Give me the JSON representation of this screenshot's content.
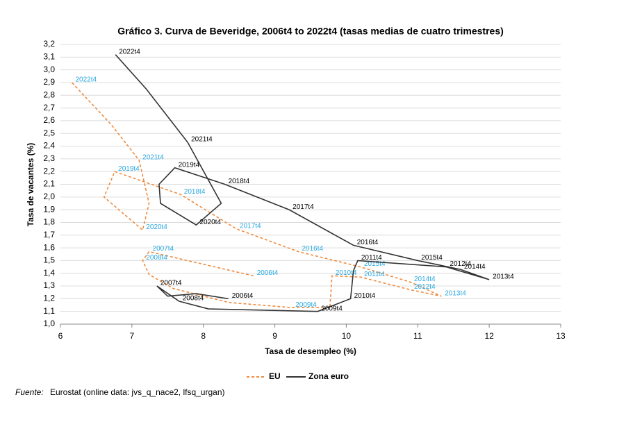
{
  "chart_data": {
    "type": "line",
    "title": "Gráfico 3. Curva de Beveridge, 2006t4 to 2022t4 (tasas medias de cuatro trimestres)",
    "x_label": "Tasa de desempleo (%)",
    "y_label": "Tasa de vacantes (%)",
    "xlim": [
      6,
      13
    ],
    "xticks": [
      6,
      7,
      8,
      9,
      10,
      11,
      12,
      13
    ],
    "ylim": [
      1.0,
      3.2
    ],
    "yticks": [
      {
        "value": 1.0,
        "label": "1,0"
      },
      {
        "value": 1.1,
        "label": "1,1"
      },
      {
        "value": 1.2,
        "label": "1,2"
      },
      {
        "value": 1.3,
        "label": "1,3"
      },
      {
        "value": 1.4,
        "label": "1,4"
      },
      {
        "value": 1.5,
        "label": "1,5"
      },
      {
        "value": 1.6,
        "label": "1,6"
      },
      {
        "value": 1.7,
        "label": "1,7"
      },
      {
        "value": 1.8,
        "label": "1,8"
      },
      {
        "value": 1.9,
        "label": "1,9"
      },
      {
        "value": 2.0,
        "label": "2,0"
      },
      {
        "value": 2.1,
        "label": "2,1"
      },
      {
        "value": 2.2,
        "label": "2,2"
      },
      {
        "value": 2.3,
        "label": "2,3"
      },
      {
        "value": 2.4,
        "label": "2,4"
      },
      {
        "value": 2.5,
        "label": "2,5"
      },
      {
        "value": 2.6,
        "label": "2,6"
      },
      {
        "value": 2.7,
        "label": "2,7"
      },
      {
        "value": 2.8,
        "label": "2,8"
      },
      {
        "value": 2.9,
        "label": "2,9"
      },
      {
        "value": 3.0,
        "label": "3,0"
      },
      {
        "value": 3.1,
        "label": "3,1"
      },
      {
        "value": 3.2,
        "label": "3,2"
      }
    ],
    "grid": true,
    "series": [
      {
        "name": "EU",
        "color": "#f08a3c",
        "dashed": true,
        "label_color": "#29a8e0",
        "x": [
          8.7,
          7.24,
          7.15,
          7.24,
          7.58,
          8.36,
          9.24,
          9.77,
          9.8,
          10.2,
          10.9,
          11.33,
          10.9,
          10.2,
          9.33,
          8.46,
          7.68,
          6.76,
          6.61,
          7.15,
          7.24,
          7.1,
          6.71,
          6.16
        ],
        "values": [
          1.38,
          1.57,
          1.5,
          1.39,
          1.28,
          1.17,
          1.13,
          1.13,
          1.38,
          1.37,
          1.27,
          1.22,
          1.33,
          1.45,
          1.57,
          1.75,
          2.02,
          2.2,
          2.0,
          1.74,
          1.95,
          2.29,
          2.57,
          2.9
        ],
        "labels": [
          "2006t4",
          "2007t4",
          "2008t4",
          null,
          null,
          null,
          "2009t4",
          null,
          "2010t4",
          "2011t4",
          "2012t4",
          "2013t4",
          "2014t4",
          "2015t4",
          "2016t4",
          "2017t4",
          "2018t4",
          "2019t4",
          null,
          "2020t4",
          null,
          "2021t4",
          null,
          "2022t4"
        ]
      },
      {
        "name": "Zona euro",
        "color": "#333333",
        "dashed": false,
        "label_color": "#000000",
        "x": [
          8.35,
          7.9,
          7.5,
          7.35,
          7.66,
          8.07,
          9.6,
          10.06,
          10.1,
          10.16,
          11.4,
          12.0,
          11.6,
          11.0,
          10.1,
          9.2,
          8.3,
          7.6,
          7.38,
          7.4,
          7.9,
          8.25,
          7.78,
          7.2,
          6.77
        ],
        "values": [
          1.2,
          1.24,
          1.22,
          1.3,
          1.18,
          1.12,
          1.1,
          1.2,
          1.42,
          1.5,
          1.45,
          1.35,
          1.43,
          1.5,
          1.62,
          1.9,
          2.1,
          2.23,
          2.1,
          1.95,
          1.78,
          1.95,
          2.43,
          2.85,
          3.12
        ],
        "labels": [
          "2006t4",
          null,
          null,
          "2007t4",
          "2008t4",
          null,
          "2009t4",
          "2010t4",
          null,
          "2011t4",
          "2012t4",
          "2013t4",
          "2014t4",
          "2015t4",
          "2016t4",
          "2017t4",
          "2018t4",
          "2019t4",
          null,
          null,
          "2020t4",
          null,
          "2021t4",
          null,
          "2022t4"
        ]
      }
    ],
    "source_label": "Fuente:",
    "source": "Eurostat (online data: jvs_q_nace2, lfsq_urgan)"
  }
}
